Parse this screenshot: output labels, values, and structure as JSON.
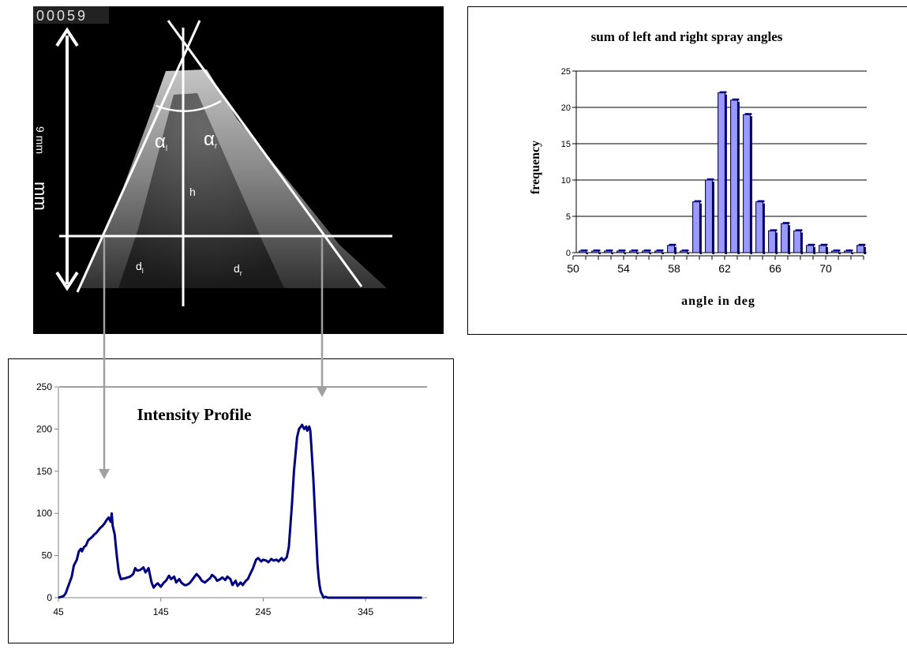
{
  "spray_image": {
    "frame_counter": "00059",
    "scale_label_small": "9 mm",
    "scale_label_large": "mm",
    "alpha_left": "α",
    "alpha_left_sub": "l",
    "alpha_right": "α",
    "alpha_right_sub": "r",
    "height_label": "h",
    "d_left": "d",
    "d_left_sub": "l",
    "d_right": "d",
    "d_right_sub": "r"
  },
  "colors": {
    "bar_fill": "#9999ff",
    "bar_dark": "#000080",
    "line": "#000080",
    "arrow": "#a0a0a0",
    "grid": "#000000"
  },
  "chart_data": [
    {
      "type": "bar",
      "title": "sum of left and right spray angles",
      "xlabel": "angle in deg",
      "ylabel": "frequency",
      "ylim": [
        0,
        25
      ],
      "yticks": [
        0,
        5,
        10,
        15,
        20,
        25
      ],
      "xtick_labels": [
        "50",
        "54",
        "58",
        "62",
        "66",
        "70"
      ],
      "x": [
        50,
        51,
        52,
        53,
        54,
        55,
        56,
        57,
        58,
        59,
        60,
        61,
        62,
        63,
        64,
        65,
        66,
        67,
        68,
        69,
        70,
        71,
        72
      ],
      "values": [
        0,
        0,
        0,
        0,
        0,
        0,
        0,
        1,
        0,
        7,
        10,
        22,
        21,
        19,
        7,
        3,
        4,
        3,
        1,
        1,
        0,
        0,
        1
      ],
      "grid": true,
      "three_d": true
    },
    {
      "type": "line",
      "title": "Intensity Profile",
      "xlabel": "",
      "ylabel": "",
      "xlim": [
        45,
        405
      ],
      "ylim": [
        0,
        250
      ],
      "xticks": [
        45,
        145,
        245,
        345
      ],
      "yticks": [
        0,
        50,
        100,
        150,
        200,
        250
      ],
      "grid": false,
      "series": [
        {
          "x": [
            45,
            50,
            52,
            55,
            58,
            60,
            63,
            65,
            67,
            68,
            70,
            72,
            74,
            76,
            78,
            80,
            82,
            84,
            86,
            88,
            90,
            92,
            94,
            96,
            97,
            98,
            100,
            102,
            104,
            106,
            110,
            115,
            118,
            120,
            122,
            125,
            128,
            130,
            133,
            136,
            138,
            140,
            142,
            145,
            148,
            150,
            153,
            155,
            158,
            160,
            163,
            165,
            168,
            170,
            173,
            175,
            178,
            180,
            183,
            185,
            188,
            190,
            193,
            195,
            198,
            200,
            203,
            205,
            208,
            210,
            213,
            215,
            218,
            220,
            223,
            225,
            228,
            230,
            233,
            235,
            238,
            240,
            243,
            245,
            248,
            250,
            253,
            255,
            258,
            260,
            263,
            265,
            268,
            270,
            273,
            275,
            278,
            280,
            283,
            285,
            287,
            288,
            289,
            290,
            291,
            292,
            293,
            294,
            295,
            296,
            297,
            298,
            299,
            300,
            301,
            302,
            304,
            306,
            308,
            310,
            312,
            314,
            316,
            318,
            320,
            322,
            325,
            328,
            330,
            335,
            340,
            345,
            360,
            380,
            400
          ],
          "y": [
            0,
            2,
            5,
            15,
            25,
            38,
            45,
            55,
            58,
            55,
            60,
            62,
            68,
            70,
            72,
            75,
            77,
            80,
            83,
            85,
            88,
            92,
            95,
            90,
            100,
            85,
            75,
            50,
            30,
            22,
            23,
            25,
            28,
            35,
            32,
            33,
            36,
            30,
            35,
            18,
            12,
            15,
            17,
            13,
            18,
            20,
            26,
            22,
            25,
            18,
            22,
            18,
            15,
            15,
            17,
            20,
            25,
            28,
            24,
            20,
            18,
            20,
            23,
            27,
            24,
            20,
            22,
            24,
            21,
            25,
            22,
            15,
            20,
            14,
            18,
            15,
            20,
            22,
            30,
            35,
            45,
            47,
            43,
            45,
            44,
            42,
            46,
            44,
            45,
            43,
            47,
            44,
            48,
            60,
            110,
            150,
            190,
            200,
            205,
            200,
            203,
            198,
            200,
            203,
            198,
            180,
            160,
            140,
            115,
            90,
            65,
            40,
            25,
            15,
            8,
            5,
            0,
            1,
            0,
            0,
            0,
            0,
            0,
            0,
            0,
            0,
            0,
            0,
            0,
            0,
            0,
            0,
            0,
            0,
            0
          ],
          "dummy_fix": true
        }
      ]
    }
  ]
}
